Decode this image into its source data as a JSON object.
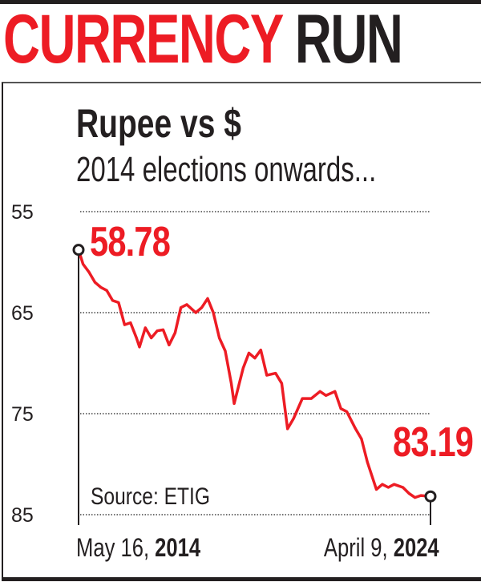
{
  "headline": {
    "part1": "CURRENCY",
    "part2": "RUN"
  },
  "colors": {
    "accent": "#ed1c24",
    "text": "#231f20",
    "grid": "#555555"
  },
  "chart_data": {
    "type": "line",
    "title": "Rupee vs $",
    "subtitle": "2014 elections onwards...",
    "source": "Source: ETIG",
    "y_inverted": true,
    "ylim": [
      55,
      85
    ],
    "yticks": [
      "55",
      "65",
      "75",
      "85"
    ],
    "ytick_values": [
      55,
      65,
      75,
      85
    ],
    "grid": "horizontal dotted",
    "x_start_label": {
      "date": "May 16, ",
      "year": "2014"
    },
    "x_end_label": {
      "date": "April 9, ",
      "year": "2024"
    },
    "start_value_label": "58.78",
    "end_value_label": "83.19",
    "series": [
      {
        "points": [
          [
            "2014-05-16",
            58.78
          ],
          [
            "2014-07-01",
            60.2
          ],
          [
            "2014-09-01",
            61.0
          ],
          [
            "2014-11-01",
            62.0
          ],
          [
            "2015-01-01",
            62.5
          ],
          [
            "2015-03-01",
            62.8
          ],
          [
            "2015-05-01",
            63.8
          ],
          [
            "2015-07-01",
            64.0
          ],
          [
            "2015-09-01",
            66.2
          ],
          [
            "2015-11-01",
            66.0
          ],
          [
            "2016-01-01",
            67.5
          ],
          [
            "2016-02-01",
            68.4
          ],
          [
            "2016-04-01",
            66.5
          ],
          [
            "2016-06-01",
            67.5
          ],
          [
            "2016-08-01",
            66.8
          ],
          [
            "2016-10-01",
            66.7
          ],
          [
            "2016-12-01",
            68.2
          ],
          [
            "2017-02-01",
            67.0
          ],
          [
            "2017-04-01",
            64.5
          ],
          [
            "2017-06-01",
            64.2
          ],
          [
            "2017-09-01",
            65.0
          ],
          [
            "2017-11-01",
            64.5
          ],
          [
            "2018-01-01",
            63.6
          ],
          [
            "2018-03-01",
            65.0
          ],
          [
            "2018-05-01",
            67.5
          ],
          [
            "2018-07-01",
            68.8
          ],
          [
            "2018-09-01",
            72.0
          ],
          [
            "2018-10-01",
            74.0
          ],
          [
            "2019-01-01",
            70.5
          ],
          [
            "2019-03-01",
            69.0
          ],
          [
            "2019-05-01",
            69.5
          ],
          [
            "2019-07-01",
            68.7
          ],
          [
            "2019-09-01",
            71.2
          ],
          [
            "2019-12-01",
            71.0
          ],
          [
            "2020-02-01",
            72.0
          ],
          [
            "2020-04-01",
            76.5
          ],
          [
            "2020-06-01",
            75.5
          ],
          [
            "2020-09-01",
            73.5
          ],
          [
            "2020-12-01",
            73.5
          ],
          [
            "2021-03-01",
            72.8
          ],
          [
            "2021-05-01",
            73.2
          ],
          [
            "2021-08-01",
            72.8
          ],
          [
            "2021-10-01",
            74.5
          ],
          [
            "2021-12-01",
            74.8
          ],
          [
            "2022-03-01",
            76.5
          ],
          [
            "2022-05-01",
            77.5
          ],
          [
            "2022-07-01",
            79.8
          ],
          [
            "2022-10-01",
            82.5
          ],
          [
            "2022-12-01",
            82.0
          ],
          [
            "2023-02-01",
            82.3
          ],
          [
            "2023-04-01",
            82.0
          ],
          [
            "2023-07-01",
            82.3
          ],
          [
            "2023-09-01",
            82.9
          ],
          [
            "2023-11-01",
            83.3
          ],
          [
            "2024-01-01",
            83.1
          ],
          [
            "2024-04-09",
            83.19
          ]
        ]
      }
    ]
  }
}
